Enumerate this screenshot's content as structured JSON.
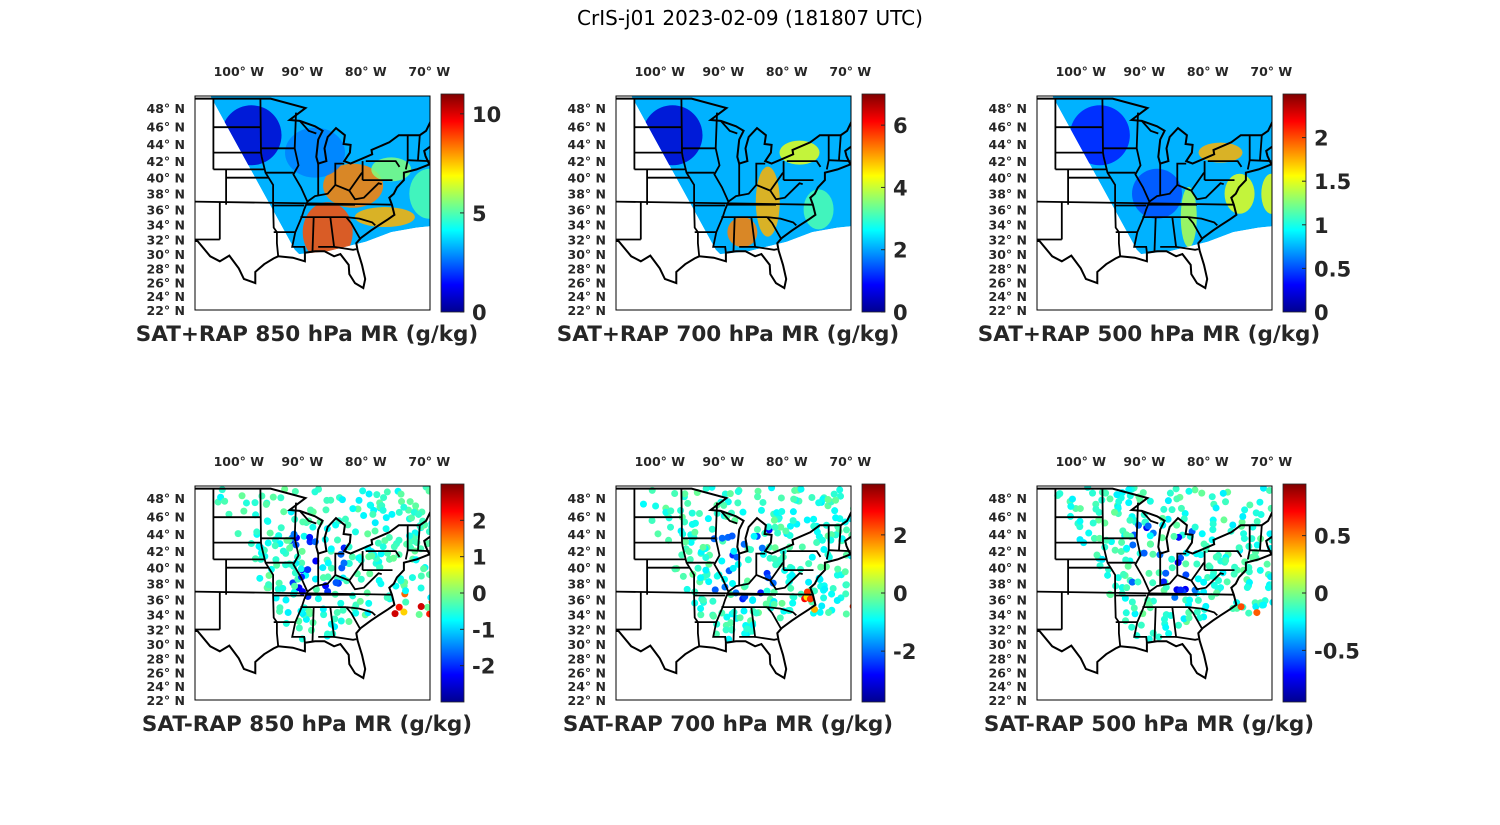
{
  "figure_title": "CrIS-j01 2023-02-09 (181807 UTC)",
  "lon_ticks": [
    "100° W",
    "90° W",
    "80° W",
    "70° W"
  ],
  "lat_ticks": [
    "48° N",
    "46° N",
    "44° N",
    "42° N",
    "40° N",
    "38° N",
    "36° N",
    "34° N",
    "32° N",
    "30° N",
    "28° N",
    "26° N",
    "24° N",
    "22° N"
  ],
  "panels": [
    {
      "title": "SAT+RAP 850 hPa MR (g/kg)",
      "kind": "sum",
      "colorbar": {
        "min": 0,
        "max": 11,
        "ticks": [
          0,
          5,
          10
        ],
        "tick_labels": [
          "0",
          "5",
          "10"
        ]
      }
    },
    {
      "title": "SAT+RAP 700 hPa MR (g/kg)",
      "kind": "sum",
      "colorbar": {
        "min": 0,
        "max": 7,
        "ticks": [
          0,
          2,
          4,
          6
        ],
        "tick_labels": [
          "0",
          "2",
          "4",
          "6"
        ]
      }
    },
    {
      "title": "SAT+RAP 500 hPa MR (g/kg)",
      "kind": "sum",
      "colorbar": {
        "min": 0,
        "max": 2.5,
        "ticks": [
          0,
          0.5,
          1,
          1.5,
          2
        ],
        "tick_labels": [
          "0",
          "0.5",
          "1",
          "1.5",
          "2"
        ]
      }
    },
    {
      "title": "SAT-RAP 850 hPa MR (g/kg)",
      "kind": "diff",
      "colorbar": {
        "min": -3,
        "max": 3,
        "ticks": [
          -2,
          -1,
          0,
          1,
          2
        ],
        "tick_labels": [
          "-2",
          "-1",
          "0",
          "1",
          "2"
        ]
      }
    },
    {
      "title": "SAT-RAP 700 hPa MR (g/kg)",
      "kind": "diff",
      "colorbar": {
        "min": -3.75,
        "max": 3.75,
        "ticks": [
          -2,
          0,
          2
        ],
        "tick_labels": [
          "-2",
          "0",
          "2"
        ]
      }
    },
    {
      "title": "SAT-RAP 500 hPa MR (g/kg)",
      "kind": "diff",
      "colorbar": {
        "min": -0.95,
        "max": 0.95,
        "ticks": [
          -0.5,
          0,
          0.5
        ],
        "tick_labels": [
          "-0.5",
          "0",
          "0.5"
        ]
      }
    }
  ]
}
